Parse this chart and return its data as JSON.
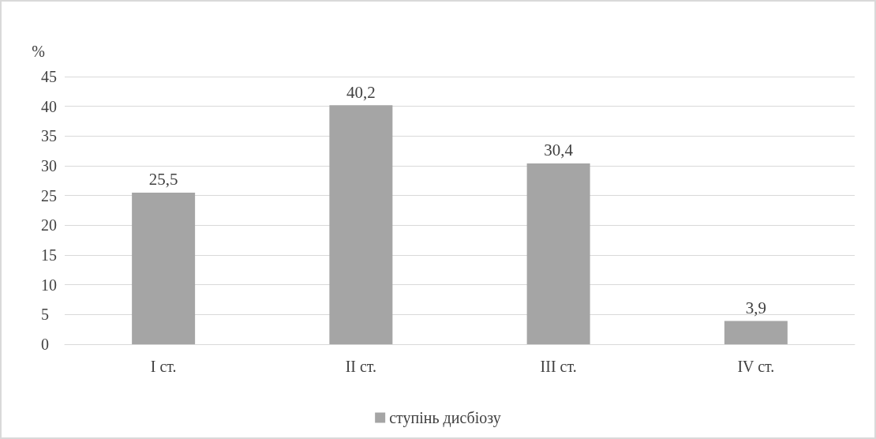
{
  "chart_data": {
    "type": "bar",
    "ylabel": "%",
    "categories": [
      "I ст.",
      "II ст.",
      "III ст.",
      "IV ст."
    ],
    "series": [
      {
        "name": "ступінь дисбіозу",
        "color": "#a5a5a5",
        "values": [
          25.5,
          40.2,
          30.4,
          3.9
        ],
        "value_labels": [
          "25,5",
          "40,2",
          "30,4",
          "3,9"
        ]
      }
    ],
    "ylim": [
      0,
      45
    ],
    "yticks": [
      0,
      5,
      10,
      15,
      20,
      25,
      30,
      35,
      40,
      45
    ],
    "grid": "y",
    "legend": "bottom"
  }
}
